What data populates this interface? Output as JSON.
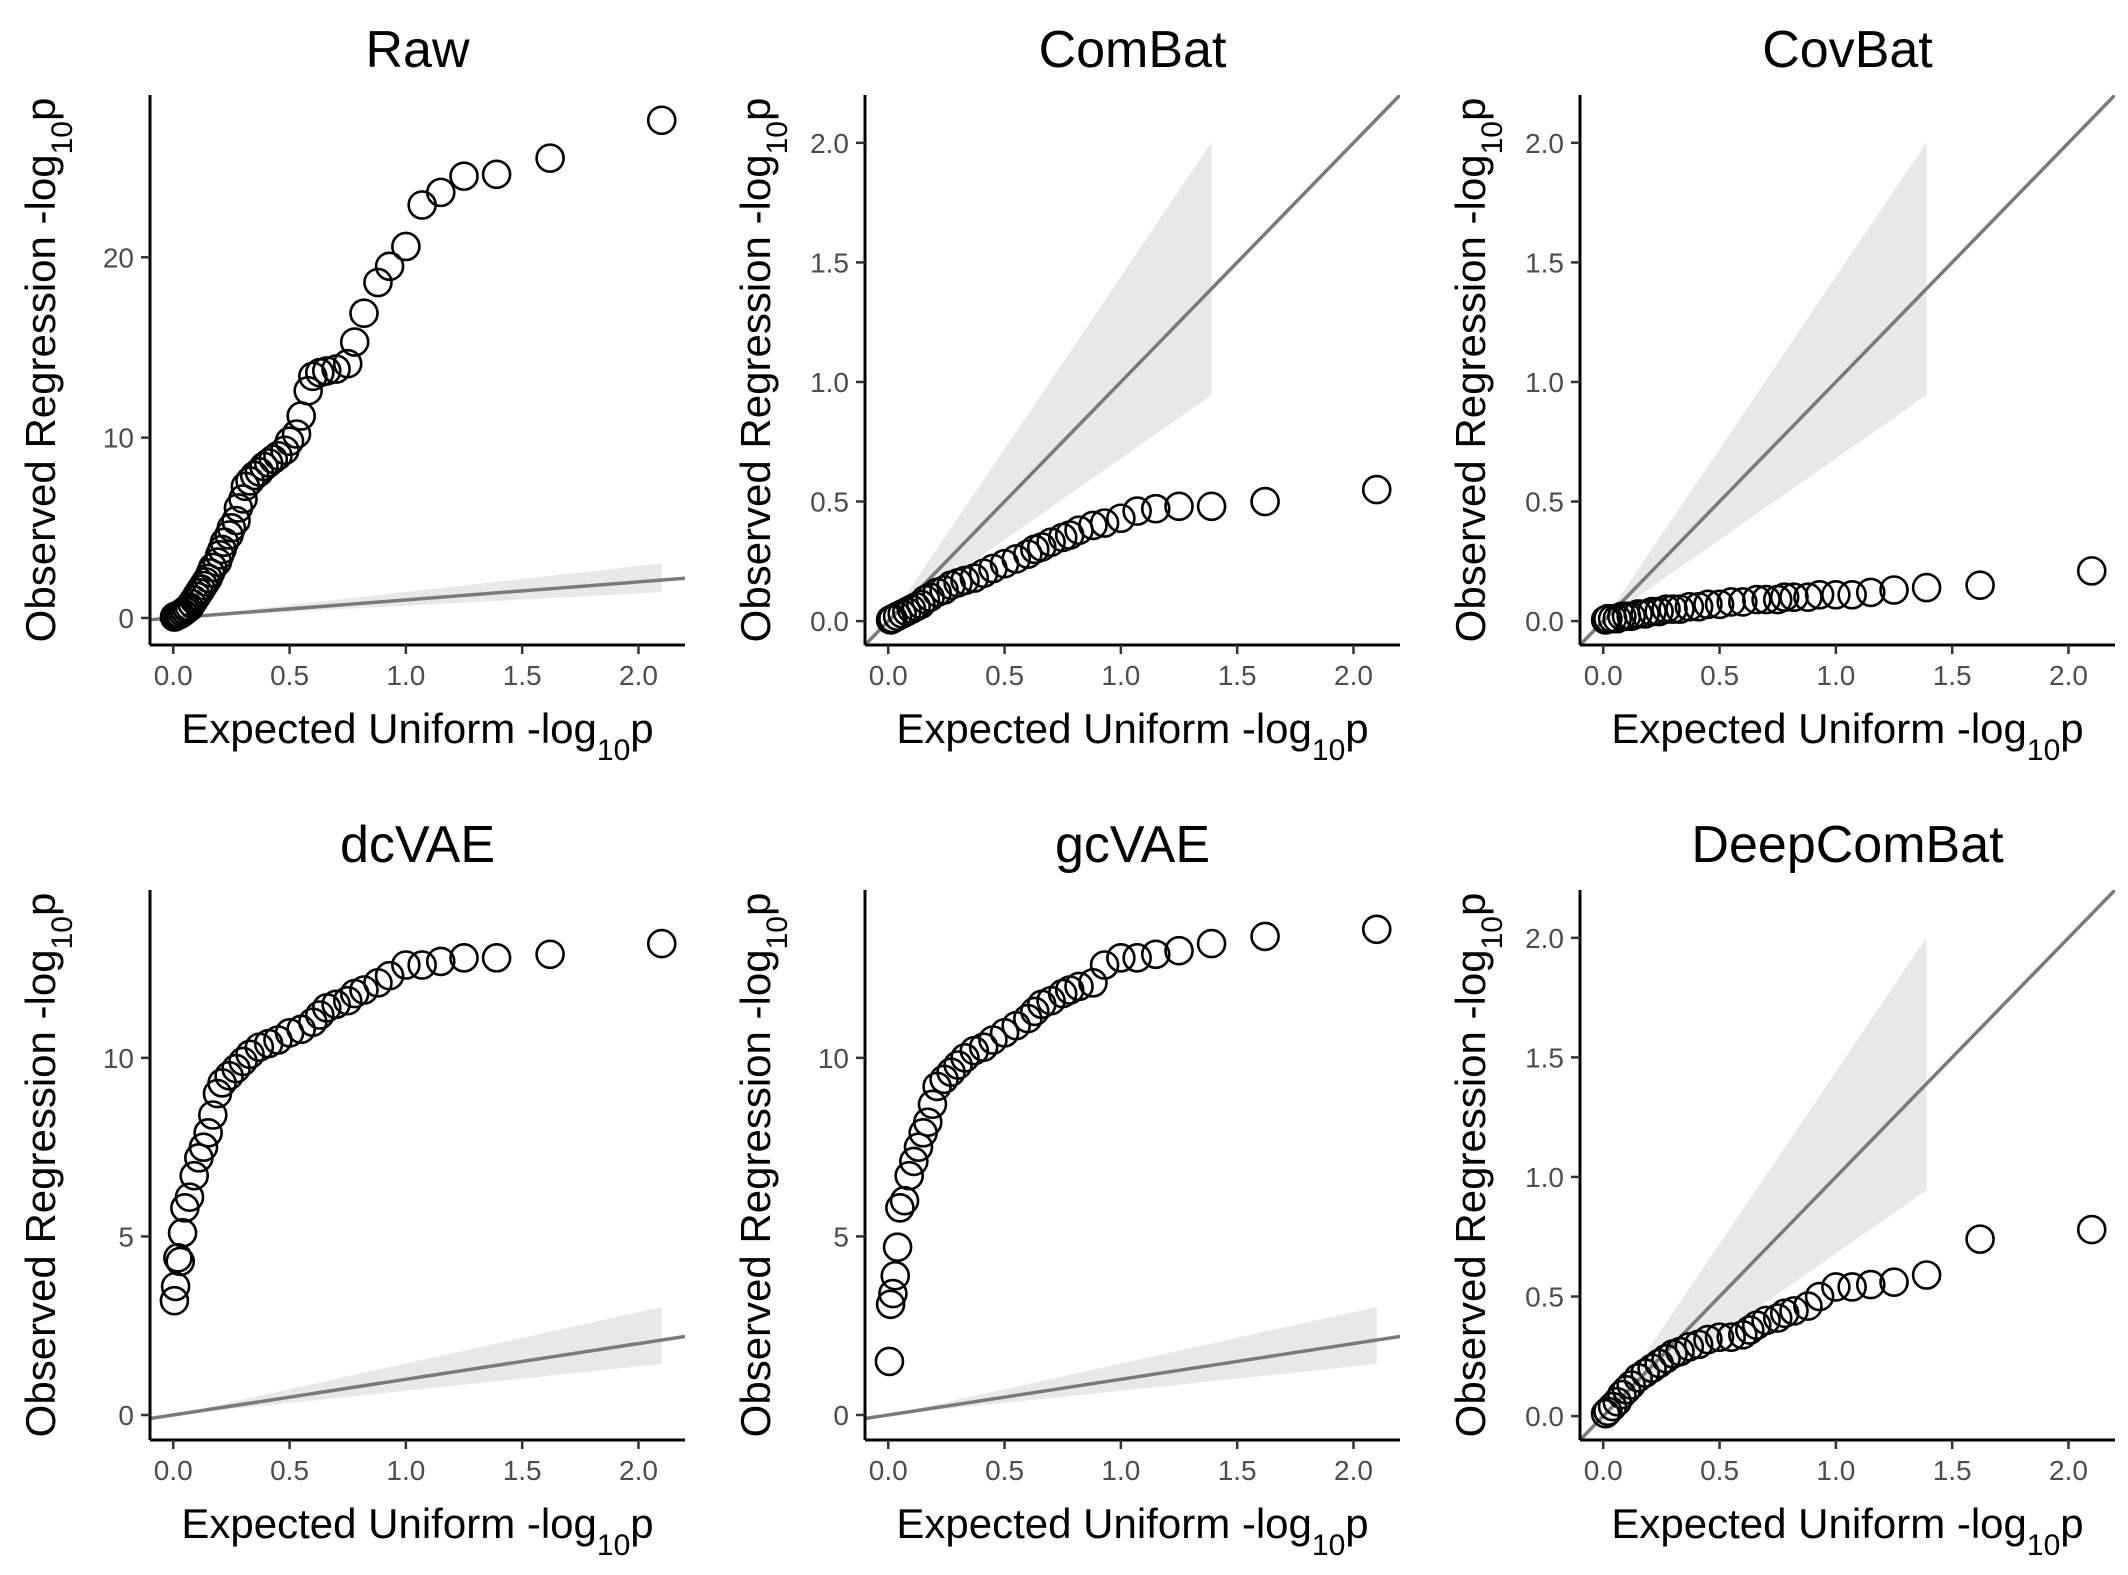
{
  "axis_text": {
    "x_main": "Expected Uniform -log",
    "x_sub": "10",
    "x_tail": "p",
    "y_main": "Observed Regression -log",
    "y_sub": "10",
    "y_tail": "p"
  },
  "chart_data": [
    {
      "type": "scatter",
      "title": "Raw",
      "xlim": [
        -0.1,
        2.2
      ],
      "ylim": [
        -1.5,
        29.0
      ],
      "xticks": [
        0.0,
        0.5,
        1.0,
        1.5,
        2.0
      ],
      "yticks": [
        0,
        10,
        20
      ],
      "xtick_labels": [
        "0.0",
        "0.5",
        "1.0",
        "1.5",
        "2.0"
      ],
      "ytick_labels": [
        "0",
        "10",
        "20"
      ],
      "reference_line": "y = x",
      "confidence_band": true,
      "grid": false,
      "points": {
        "x": [
          2.1,
          1.62,
          1.39,
          1.25,
          1.15,
          1.07,
          1.0,
          0.93,
          0.88,
          0.82,
          0.78,
          0.75,
          0.7,
          0.66,
          0.63,
          0.6,
          0.58,
          0.55,
          0.53,
          0.5,
          0.48,
          0.45,
          0.43,
          0.41,
          0.39,
          0.37,
          0.35,
          0.33,
          0.31,
          0.3,
          0.28,
          0.27,
          0.25,
          0.24,
          0.22,
          0.21,
          0.2,
          0.19,
          0.17,
          0.16,
          0.15,
          0.14,
          0.13,
          0.12,
          0.11,
          0.1,
          0.09,
          0.08,
          0.07,
          0.06,
          0.05,
          0.04,
          0.03,
          0.02,
          0.01,
          0.005
        ],
        "y": [
          27.6,
          25.5,
          24.6,
          24.5,
          23.6,
          22.9,
          20.6,
          19.5,
          18.6,
          16.9,
          15.3,
          14.1,
          13.8,
          13.7,
          13.6,
          13.4,
          12.6,
          11.2,
          10.2,
          9.8,
          9.3,
          9.0,
          8.8,
          8.6,
          8.4,
          8.1,
          7.9,
          7.6,
          7.3,
          6.6,
          6.1,
          5.4,
          5.0,
          4.6,
          4.2,
          3.8,
          3.5,
          3.1,
          2.8,
          2.5,
          2.2,
          2.0,
          1.8,
          1.6,
          1.4,
          1.2,
          1.0,
          0.8,
          0.6,
          0.5,
          0.4,
          0.3,
          0.2,
          0.15,
          0.1,
          0.05
        ]
      }
    },
    {
      "type": "scatter",
      "title": "ComBat",
      "xlim": [
        -0.1,
        2.2
      ],
      "ylim": [
        -0.1,
        2.2
      ],
      "xticks": [
        0.0,
        0.5,
        1.0,
        1.5,
        2.0
      ],
      "yticks": [
        0.0,
        0.5,
        1.0,
        1.5,
        2.0
      ],
      "xtick_labels": [
        "0.0",
        "0.5",
        "1.0",
        "1.5",
        "2.0"
      ],
      "ytick_labels": [
        "0.0",
        "0.5",
        "1.0",
        "1.5",
        "2.0"
      ],
      "reference_line": "y = x",
      "confidence_band": true,
      "grid": false,
      "points": {
        "x": [
          2.1,
          1.62,
          1.39,
          1.25,
          1.15,
          1.07,
          1.0,
          0.93,
          0.88,
          0.82,
          0.78,
          0.75,
          0.7,
          0.66,
          0.63,
          0.6,
          0.55,
          0.5,
          0.45,
          0.41,
          0.37,
          0.33,
          0.3,
          0.27,
          0.24,
          0.21,
          0.18,
          0.16,
          0.14,
          0.12,
          0.1,
          0.08,
          0.06,
          0.04,
          0.02,
          0.01
        ],
        "y": [
          0.55,
          0.5,
          0.48,
          0.48,
          0.47,
          0.46,
          0.43,
          0.41,
          0.4,
          0.38,
          0.36,
          0.35,
          0.33,
          0.31,
          0.3,
          0.28,
          0.26,
          0.24,
          0.22,
          0.2,
          0.18,
          0.17,
          0.16,
          0.15,
          0.13,
          0.12,
          0.1,
          0.09,
          0.07,
          0.06,
          0.05,
          0.04,
          0.03,
          0.02,
          0.01,
          0.005
        ]
      }
    },
    {
      "type": "scatter",
      "title": "CovBat",
      "xlim": [
        -0.1,
        2.2
      ],
      "ylim": [
        -0.1,
        2.2
      ],
      "xticks": [
        0.0,
        0.5,
        1.0,
        1.5,
        2.0
      ],
      "yticks": [
        0.0,
        0.5,
        1.0,
        1.5,
        2.0
      ],
      "xtick_labels": [
        "0.0",
        "0.5",
        "1.0",
        "1.5",
        "2.0"
      ],
      "ytick_labels": [
        "0.0",
        "0.5",
        "1.0",
        "1.5",
        "2.0"
      ],
      "reference_line": "y = x",
      "confidence_band": true,
      "grid": false,
      "points": {
        "x": [
          2.1,
          1.62,
          1.39,
          1.25,
          1.15,
          1.07,
          1.0,
          0.93,
          0.88,
          0.82,
          0.78,
          0.75,
          0.7,
          0.66,
          0.6,
          0.55,
          0.5,
          0.45,
          0.41,
          0.37,
          0.33,
          0.3,
          0.27,
          0.24,
          0.21,
          0.18,
          0.15,
          0.12,
          0.1,
          0.08,
          0.06,
          0.04,
          0.02,
          0.01
        ],
        "y": [
          0.21,
          0.15,
          0.14,
          0.13,
          0.12,
          0.11,
          0.11,
          0.11,
          0.1,
          0.1,
          0.1,
          0.09,
          0.09,
          0.09,
          0.08,
          0.08,
          0.07,
          0.07,
          0.06,
          0.06,
          0.05,
          0.05,
          0.05,
          0.04,
          0.04,
          0.03,
          0.03,
          0.02,
          0.02,
          0.02,
          0.01,
          0.01,
          0.01,
          0.005
        ]
      }
    },
    {
      "type": "scatter",
      "title": "dcVAE",
      "xlim": [
        -0.1,
        2.2
      ],
      "ylim": [
        -0.7,
        14.7
      ],
      "xticks": [
        0.0,
        0.5,
        1.0,
        1.5,
        2.0
      ],
      "yticks": [
        0,
        5,
        10
      ],
      "xtick_labels": [
        "0.0",
        "0.5",
        "1.0",
        "1.5",
        "2.0"
      ],
      "ytick_labels": [
        "0",
        "5",
        "10"
      ],
      "reference_line": "y = x",
      "confidence_band": true,
      "grid": false,
      "points": {
        "x": [
          2.1,
          1.62,
          1.39,
          1.25,
          1.15,
          1.07,
          1.0,
          0.93,
          0.88,
          0.82,
          0.78,
          0.75,
          0.7,
          0.66,
          0.63,
          0.6,
          0.55,
          0.5,
          0.45,
          0.41,
          0.37,
          0.33,
          0.3,
          0.27,
          0.24,
          0.21,
          0.19,
          0.17,
          0.15,
          0.13,
          0.11,
          0.09,
          0.07,
          0.05,
          0.04,
          0.03,
          0.02,
          0.01,
          0.005
        ],
        "y": [
          13.2,
          12.9,
          12.8,
          12.8,
          12.7,
          12.6,
          12.6,
          12.3,
          12.1,
          11.9,
          11.8,
          11.6,
          11.5,
          11.4,
          11.2,
          11.0,
          10.8,
          10.7,
          10.5,
          10.4,
          10.3,
          10.1,
          9.9,
          9.7,
          9.5,
          9.3,
          9.0,
          8.4,
          7.9,
          7.5,
          7.2,
          6.7,
          6.1,
          5.8,
          5.1,
          4.3,
          4.4,
          3.6,
          3.2
        ]
      }
    },
    {
      "type": "scatter",
      "title": "gcVAE",
      "xlim": [
        -0.1,
        2.2
      ],
      "ylim": [
        -0.7,
        14.7
      ],
      "xticks": [
        0.0,
        0.5,
        1.0,
        1.5,
        2.0
      ],
      "yticks": [
        0,
        5,
        10
      ],
      "xtick_labels": [
        "0.0",
        "0.5",
        "1.0",
        "1.5",
        "2.0"
      ],
      "ytick_labels": [
        "0",
        "5",
        "10"
      ],
      "reference_line": "y = x",
      "confidence_band": true,
      "grid": false,
      "points": {
        "x": [
          2.1,
          1.62,
          1.39,
          1.25,
          1.15,
          1.07,
          1.0,
          0.93,
          0.88,
          0.82,
          0.78,
          0.75,
          0.7,
          0.66,
          0.63,
          0.6,
          0.55,
          0.5,
          0.45,
          0.41,
          0.37,
          0.33,
          0.3,
          0.27,
          0.24,
          0.21,
          0.19,
          0.17,
          0.15,
          0.13,
          0.11,
          0.09,
          0.07,
          0.05,
          0.04,
          0.03,
          0.02,
          0.01,
          0.005
        ],
        "y": [
          13.6,
          13.4,
          13.2,
          13.0,
          12.9,
          12.8,
          12.8,
          12.6,
          12.1,
          12.0,
          11.9,
          11.8,
          11.6,
          11.5,
          11.3,
          11.1,
          10.9,
          10.7,
          10.5,
          10.3,
          10.2,
          10.0,
          9.8,
          9.6,
          9.4,
          9.2,
          8.7,
          8.2,
          7.9,
          7.5,
          7.1,
          6.7,
          6.0,
          5.8,
          4.7,
          3.9,
          3.4,
          3.1,
          1.5
        ]
      }
    },
    {
      "type": "scatter",
      "title": "DeepComBat",
      "xlim": [
        -0.1,
        2.2
      ],
      "ylim": [
        -0.1,
        2.2
      ],
      "xticks": [
        0.0,
        0.5,
        1.0,
        1.5,
        2.0
      ],
      "yticks": [
        0.0,
        0.5,
        1.0,
        1.5,
        2.0
      ],
      "xtick_labels": [
        "0.0",
        "0.5",
        "1.0",
        "1.5",
        "2.0"
      ],
      "ytick_labels": [
        "0.0",
        "0.5",
        "1.0",
        "1.5",
        "2.0"
      ],
      "reference_line": "y = x",
      "confidence_band": true,
      "grid": false,
      "points": {
        "x": [
          2.1,
          1.62,
          1.39,
          1.25,
          1.15,
          1.07,
          1.0,
          0.93,
          0.88,
          0.82,
          0.78,
          0.75,
          0.7,
          0.66,
          0.63,
          0.6,
          0.55,
          0.5,
          0.45,
          0.41,
          0.37,
          0.33,
          0.3,
          0.27,
          0.24,
          0.21,
          0.18,
          0.15,
          0.12,
          0.1,
          0.08,
          0.06,
          0.04,
          0.02,
          0.01
        ],
        "y": [
          0.78,
          0.74,
          0.59,
          0.56,
          0.55,
          0.54,
          0.54,
          0.5,
          0.46,
          0.44,
          0.43,
          0.41,
          0.4,
          0.38,
          0.36,
          0.34,
          0.33,
          0.33,
          0.32,
          0.3,
          0.29,
          0.27,
          0.26,
          0.24,
          0.22,
          0.2,
          0.18,
          0.16,
          0.13,
          0.11,
          0.09,
          0.06,
          0.04,
          0.02,
          0.01
        ]
      }
    }
  ]
}
